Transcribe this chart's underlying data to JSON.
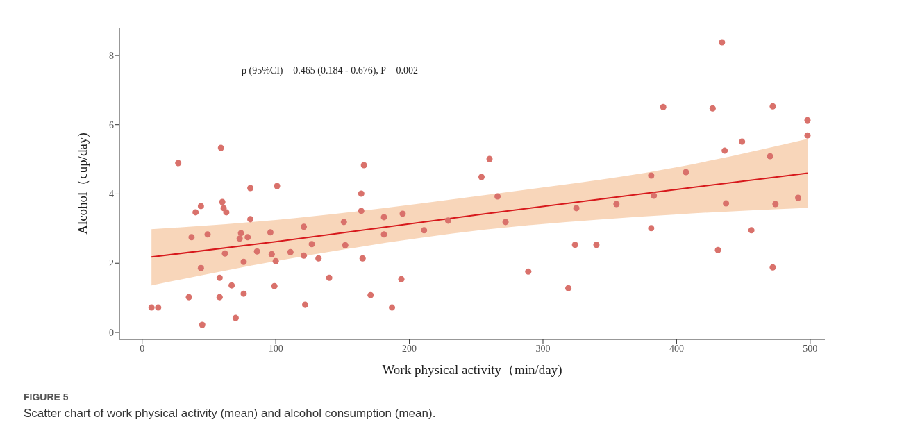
{
  "chart_data": {
    "type": "scatter",
    "xlabel": "Work physical activity（min/day)",
    "ylabel": "Alcohol（cup/day)",
    "annotations": [
      "ρ (95%CI) = 0.465 (0.184 - 0.676), P = 0.002",
      "FIGURE 5",
      "Scatter chart of work physical activity (mean) and alcohol consumption (mean)."
    ],
    "xlim": [
      -17,
      511
    ],
    "xticks": [
      0,
      100,
      200,
      300,
      400,
      500
    ],
    "ylim": [
      -0.2,
      8.8
    ],
    "yticks": [
      0,
      2,
      4,
      6,
      8
    ],
    "grid": false,
    "series": [
      {
        "marker": "circle",
        "color": "#d9716b",
        "x": [
          7,
          12,
          27,
          35,
          37,
          40,
          44,
          44,
          45,
          49,
          58,
          58,
          59,
          60,
          61,
          62,
          63,
          67,
          70,
          73,
          74,
          76,
          76,
          79,
          81,
          81,
          86,
          96,
          97,
          99,
          100,
          101,
          111,
          121,
          121,
          122,
          127,
          132,
          140,
          151,
          152,
          164,
          164,
          165,
          166,
          171,
          181,
          181,
          187,
          194,
          195,
          211,
          229,
          254,
          260,
          266,
          272,
          289,
          319,
          324,
          325,
          340,
          355,
          381,
          381,
          383,
          390,
          407,
          427,
          431,
          434,
          436,
          437,
          449,
          456,
          470,
          472,
          472,
          474,
          491,
          498,
          498
        ],
        "values": [
          0.72,
          0.72,
          4.89,
          1.02,
          2.75,
          3.47,
          3.65,
          1.86,
          0.22,
          2.83,
          1.58,
          1.02,
          5.33,
          3.77,
          3.59,
          2.28,
          3.47,
          1.36,
          0.42,
          2.71,
          2.87,
          1.12,
          2.04,
          2.75,
          4.17,
          3.27,
          2.34,
          2.89,
          2.26,
          1.34,
          2.06,
          4.23,
          2.32,
          3.05,
          2.22,
          0.8,
          2.55,
          2.14,
          1.58,
          3.19,
          2.52,
          3.51,
          4.01,
          2.14,
          4.83,
          1.08,
          3.33,
          2.83,
          0.72,
          1.54,
          3.43,
          2.95,
          3.23,
          4.49,
          5.01,
          3.93,
          3.19,
          1.76,
          1.28,
          2.53,
          3.59,
          2.53,
          3.71,
          4.53,
          3.01,
          3.95,
          6.51,
          4.63,
          6.47,
          2.38,
          8.38,
          5.25,
          3.73,
          5.51,
          2.95,
          5.09,
          6.53,
          1.88,
          3.71,
          3.89,
          6.13,
          5.69
        ]
      },
      {
        "type": "line",
        "color": "#d7191c",
        "x": [
          7,
          100,
          257,
          400,
          498
        ],
        "values": [
          2.18,
          2.62,
          3.43,
          4.13,
          4.6
        ],
        "lower": [
          1.36,
          2.06,
          2.97,
          3.41,
          3.6
        ],
        "upper": [
          2.98,
          3.25,
          3.97,
          4.77,
          5.59
        ]
      }
    ]
  }
}
